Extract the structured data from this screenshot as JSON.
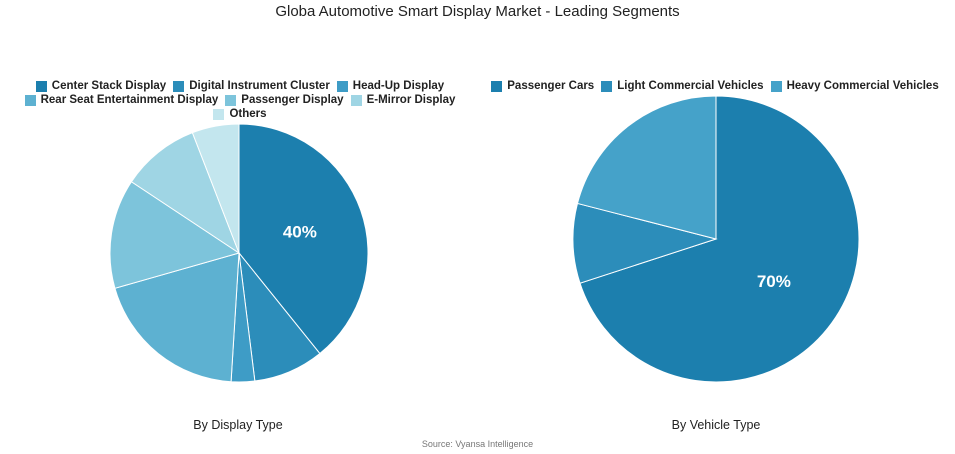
{
  "title": "Globa Automotive Smart Display Market - Leading Segments",
  "source": "Source: Vyansa Intelligence",
  "chart_data": [
    {
      "type": "pie",
      "title": "By Display Type",
      "categories": [
        "Center Stack Display",
        "Digital Instrument Cluster",
        "Head-Up Display",
        "Rear Seat Entertainment Display",
        "Passenger Display",
        "E-Mirror Display",
        "Others"
      ],
      "values": [
        40,
        9,
        3,
        20,
        14,
        10,
        6
      ],
      "colors": [
        "#1c7fae",
        "#2c8dba",
        "#3e9cc6",
        "#5db1d1",
        "#7dc4db",
        "#9fd5e4",
        "#c3e6ee"
      ],
      "data_labels": [
        "40%",
        "",
        "",
        "",
        "",
        "",
        ""
      ],
      "legend": "top"
    },
    {
      "type": "pie",
      "title": "By Vehicle Type",
      "categories": [
        "Passenger Cars",
        "Light Commercial Vehicles",
        "Heavy Commercial Vehicles"
      ],
      "values": [
        70,
        9,
        21
      ],
      "colors": [
        "#1c7fae",
        "#2c8dba",
        "#45a2c9"
      ],
      "data_labels": [
        "70%",
        "",
        ""
      ],
      "legend": "top"
    }
  ]
}
